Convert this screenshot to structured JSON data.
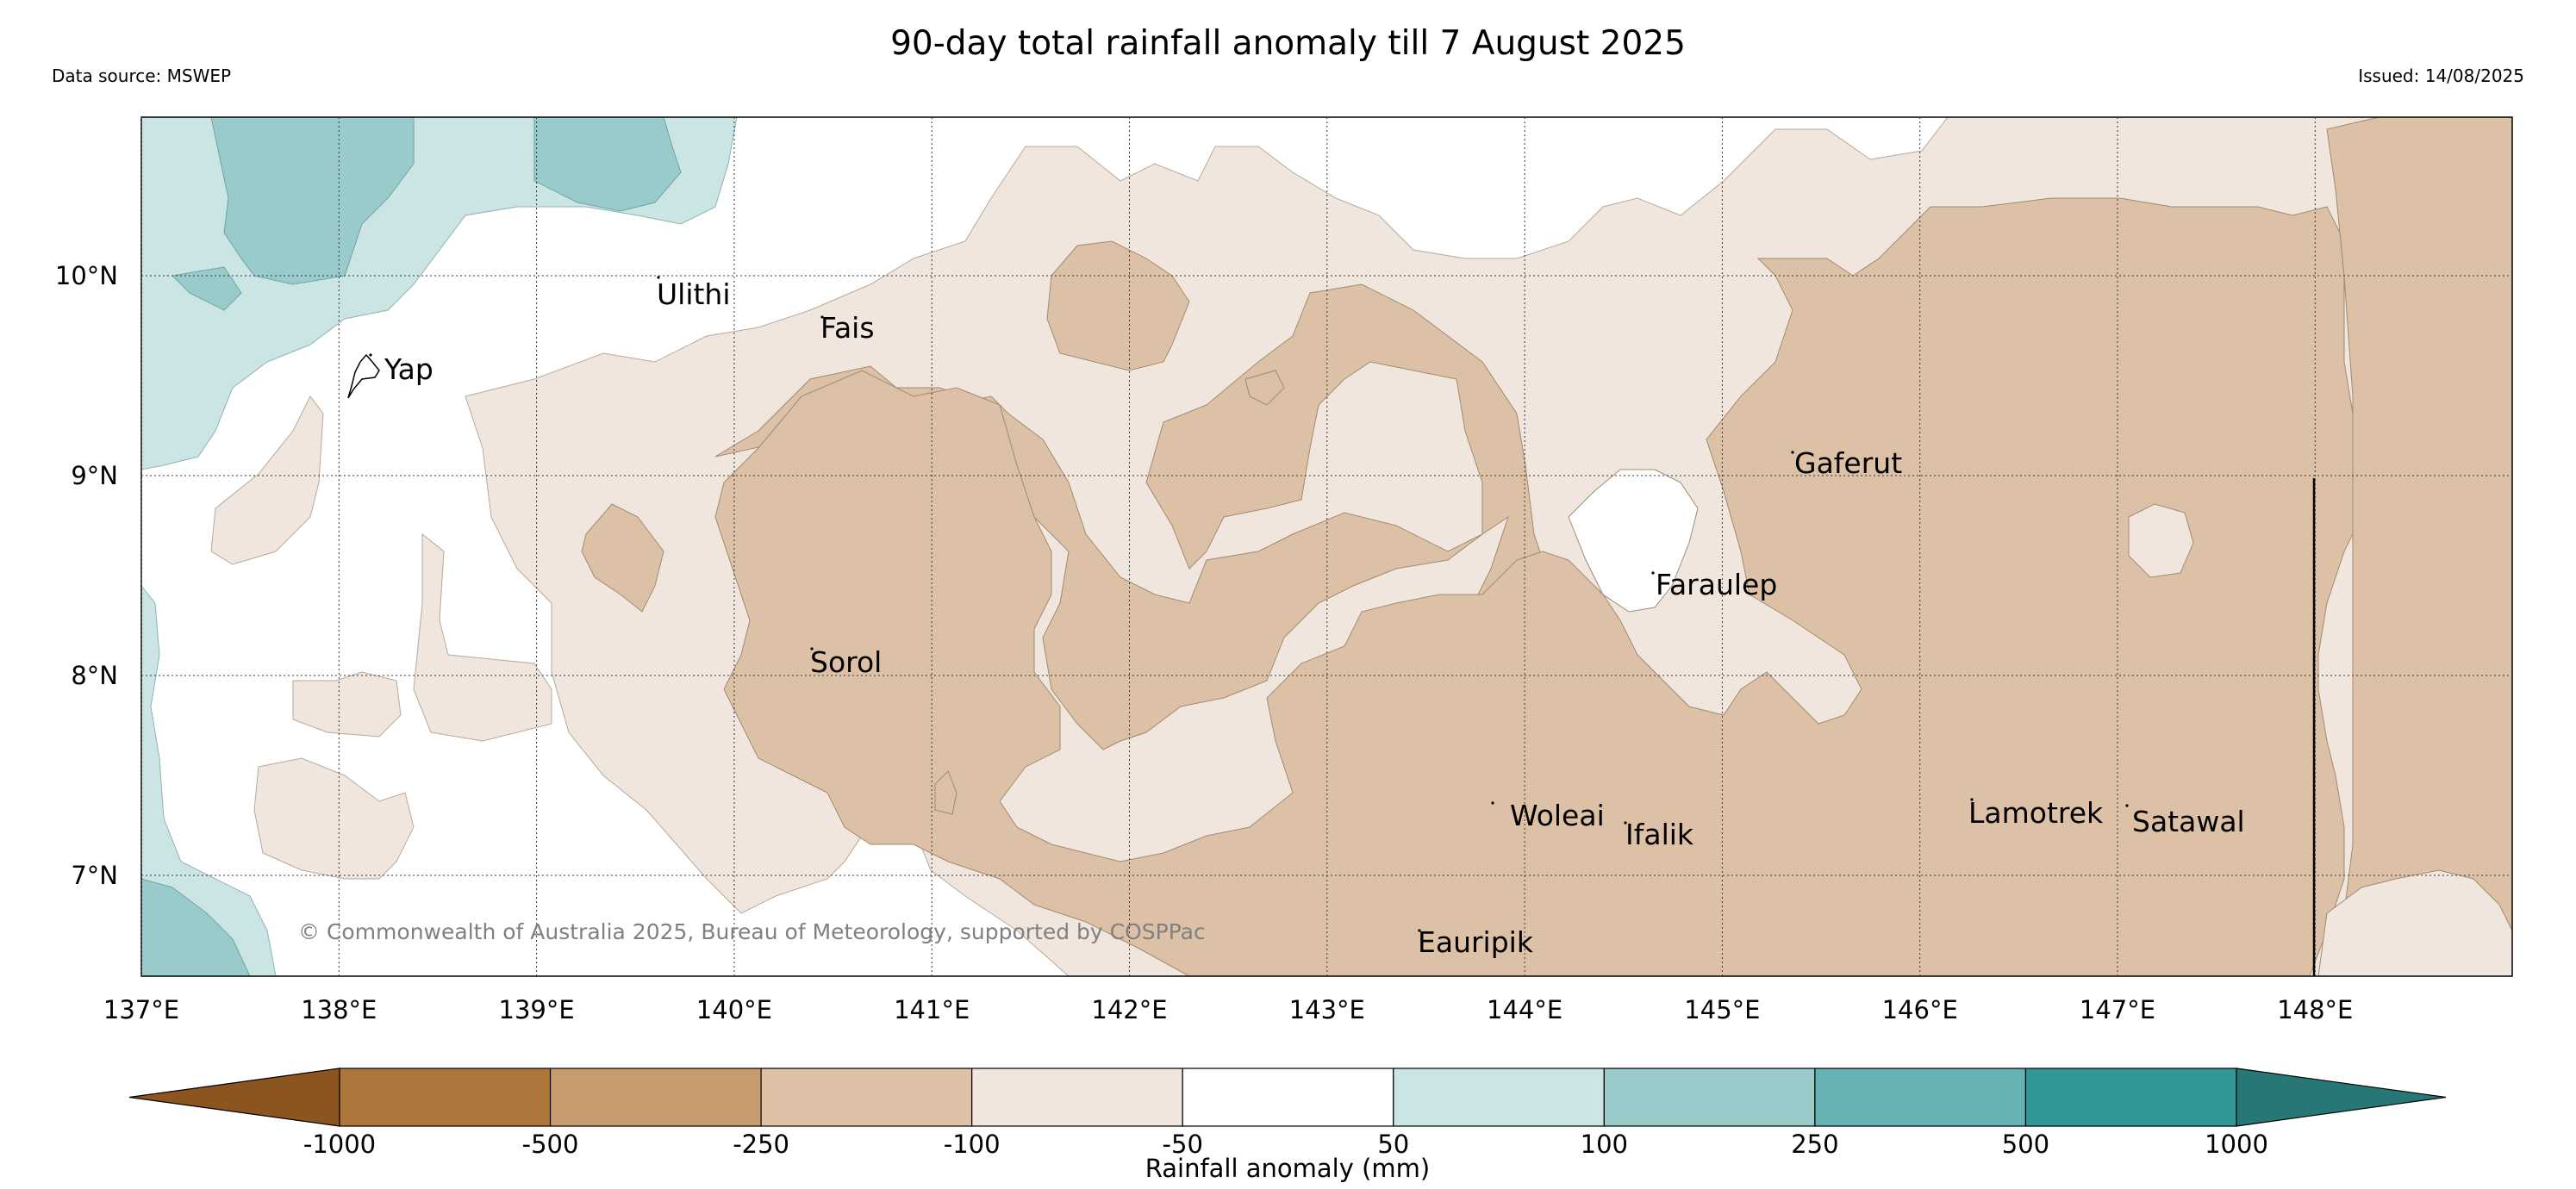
{
  "header": {
    "title": "90-day total rainfall anomaly till 7 August 2025",
    "source": "Data source: MSWEP",
    "issued": "Issued: 14/08/2025"
  },
  "map": {
    "lon_ticks": [
      "137°E",
      "138°E",
      "139°E",
      "140°E",
      "141°E",
      "142°E",
      "143°E",
      "144°E",
      "145°E",
      "146°E",
      "147°E",
      "148°E"
    ],
    "lat_ticks": [
      "10°N",
      "9°N",
      "8°N",
      "7°N"
    ],
    "places": [
      "Ulithi",
      "Fais",
      "Yap",
      "Gaferut",
      "Faraulep",
      "Sorol",
      "Woleai",
      "Ifalik",
      "Lamotrek",
      "Satawal",
      "Eauripik"
    ],
    "copyright": "© Commonwealth of Australia 2025, Bureau of Meteorology, supported by COSPPac"
  },
  "colorbar": {
    "title": "Rainfall anomaly (mm)",
    "ticks": [
      "-1000",
      "-500",
      "-250",
      "-100",
      "-50",
      "50",
      "100",
      "250",
      "500",
      "1000"
    ],
    "colors": [
      "#8c5520",
      "#ad763b",
      "#c69b6f",
      "#dcc1a6",
      "#f1e6dd",
      "#ffffff",
      "#cbe5e4",
      "#99cbcb",
      "#66b2b2",
      "#319898",
      "#277777"
    ]
  }
}
